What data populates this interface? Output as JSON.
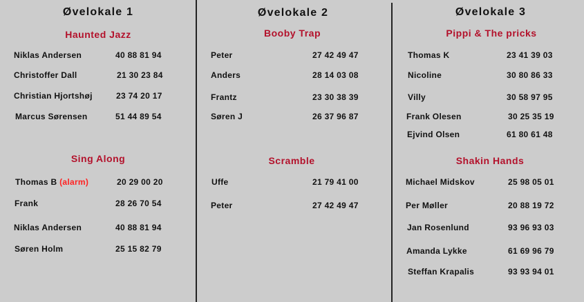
{
  "colors": {
    "background": "#cccccc",
    "group_title": "#b3112b",
    "alarm": "#ff2222"
  },
  "rooms": [
    {
      "title": "Øvelokale 1",
      "groups": [
        {
          "name": "Haunted Jazz",
          "members": [
            {
              "name": "Niklas Andersen",
              "phone": "40 88 81 94"
            },
            {
              "name": "Christoffer Dall",
              "phone": "21 30 23 84"
            },
            {
              "name": "Christian Hjortshøj",
              "phone": "23 74 20 17"
            },
            {
              "name": "Marcus Sørensen",
              "phone": "51 44 89 54"
            }
          ]
        },
        {
          "name": "Sing Along",
          "members": [
            {
              "name": "Thomas B",
              "note": "(alarm)",
              "phone": "20 29 00 20"
            },
            {
              "name": "Frank",
              "phone": "28 26 70 54"
            },
            {
              "name": "Niklas Andersen",
              "phone": "40 88 81 94"
            },
            {
              "name": "Søren Holm",
              "phone": "25 15 82 79"
            }
          ]
        }
      ]
    },
    {
      "title": "Øvelokale 2",
      "groups": [
        {
          "name": "Booby Trap",
          "members": [
            {
              "name": "Peter",
              "phone": "27 42 49 47"
            },
            {
              "name": "Anders",
              "phone": "28 14 03 08"
            },
            {
              "name": "Frantz",
              "phone": "23 30 38 39"
            },
            {
              "name": "Søren J",
              "phone": "26 37 96 87"
            }
          ]
        },
        {
          "name": "Scramble",
          "members": [
            {
              "name": "Uffe",
              "phone": "21 79 41 00"
            },
            {
              "name": "Peter",
              "phone": "27 42 49 47"
            }
          ]
        }
      ]
    },
    {
      "title": "Øvelokale 3",
      "groups": [
        {
          "name": "Pippi & The pricks",
          "members": [
            {
              "name": "Thomas K",
              "phone": "23 41 39 03"
            },
            {
              "name": "Nicoline",
              "phone": "30 80 86 33"
            },
            {
              "name": "Villy",
              "phone": "30 58 97 95"
            },
            {
              "name": "Frank Olesen",
              "phone": "30 25 35 19"
            },
            {
              "name": "Ejvind Olsen",
              "phone": "61 80 61 48"
            }
          ]
        },
        {
          "name": "Shakin Hands",
          "members": [
            {
              "name": "Michael Midskov",
              "phone": "25 98 05 01"
            },
            {
              "name": "Per Møller",
              "phone": "20 88 19 72"
            },
            {
              "name": "Jan Rosenlund",
              "phone": "93 96 93 03"
            },
            {
              "name": "Amanda Lykke",
              "phone": "61 69 96 79"
            },
            {
              "name": "Steffan Krapalis",
              "phone": "93 93 94 01"
            }
          ]
        }
      ]
    }
  ]
}
